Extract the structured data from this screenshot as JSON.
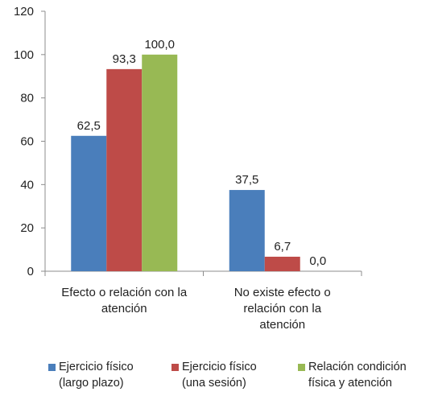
{
  "chart_data": {
    "type": "bar",
    "categories": [
      [
        "Efecto o relación con la",
        "atención"
      ],
      [
        "No existe efecto o",
        "relación con la",
        "atención"
      ]
    ],
    "series": [
      {
        "name": [
          "Ejercicio físico",
          "(largo plazo)"
        ],
        "values": [
          62.5,
          37.5
        ],
        "labels": [
          "62,5",
          "37,5"
        ],
        "color": "#4a7ebb"
      },
      {
        "name": [
          "Ejercicio físico",
          "(una sesión)"
        ],
        "values": [
          93.3,
          6.7
        ],
        "labels": [
          "93,3",
          "6,7"
        ],
        "color": "#be4b48"
      },
      {
        "name": [
          "Relación condición",
          "física y atención"
        ],
        "values": [
          100.0,
          0.0
        ],
        "labels": [
          "100,0",
          "0,0"
        ],
        "color": "#98b954"
      }
    ],
    "ylim": [
      0,
      120
    ],
    "yticks": [
      "0",
      "20",
      "40",
      "60",
      "80",
      "100",
      "120"
    ],
    "ytick_values": [
      0,
      20,
      40,
      60,
      80,
      100,
      120
    ],
    "grid": false,
    "legend_position": "bottom",
    "title": "",
    "xlabel": "",
    "ylabel": ""
  }
}
